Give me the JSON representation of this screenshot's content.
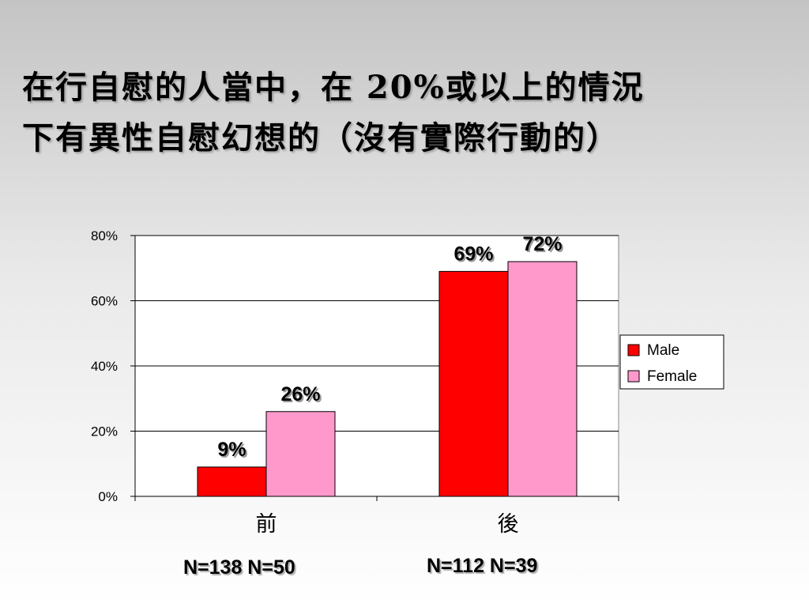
{
  "title": {
    "line1": "在行自慰的人當中，在 20%或以上的情況",
    "line2": "下有異性自慰幻想的（沒有實際行動的）"
  },
  "chart_data": {
    "type": "bar",
    "categories": [
      "前",
      "後"
    ],
    "series": [
      {
        "name": "Male",
        "values": [
          9,
          69
        ],
        "color": "#ff0000"
      },
      {
        "name": "Female",
        "values": [
          26,
          72
        ],
        "color": "#ff99cc"
      }
    ],
    "data_labels": [
      [
        "9%",
        "69%"
      ],
      [
        "26%",
        "72%"
      ]
    ],
    "ylim": [
      0,
      80
    ],
    "yticks": [
      "0%",
      "20%",
      "40%",
      "60%",
      "80%"
    ],
    "grid": true,
    "legend": "right",
    "plot_background": "#ffffff"
  },
  "sample_sizes": [
    "N=138 N=50",
    "N=112 N=39"
  ]
}
